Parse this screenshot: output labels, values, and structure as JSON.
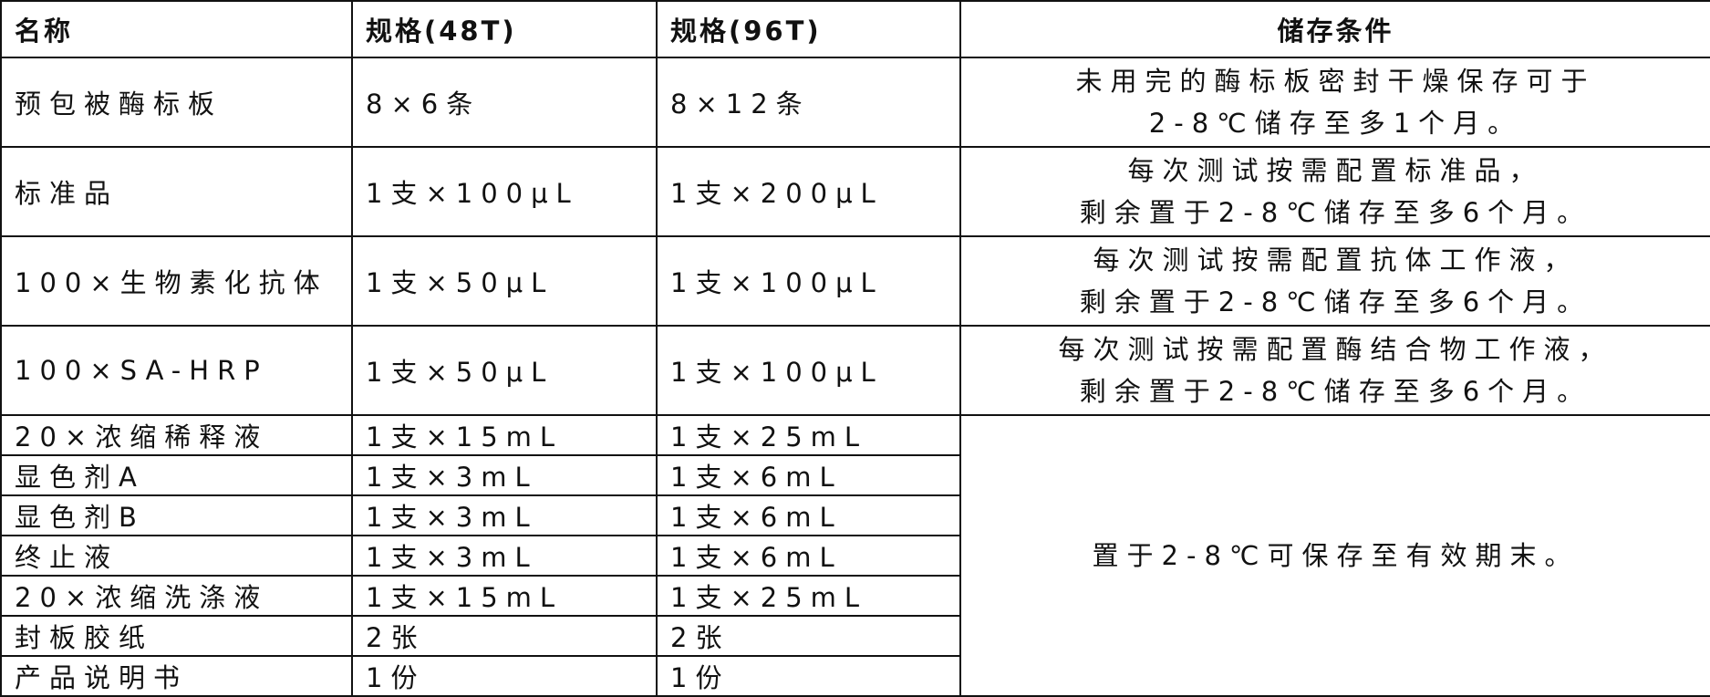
{
  "headers": [
    "名称",
    "规格(48T)",
    "规格(96T)",
    "储存条件"
  ],
  "rows": [
    {
      "name": "预包被酶标板",
      "spec48": "8×6条",
      "spec96": "8×12条",
      "storage": [
        "未用完的酶标板密封干燥保存可于",
        "2-8℃储存至多1个月。"
      ]
    },
    {
      "name": "标准品",
      "spec48": "1支×100μL",
      "spec96": "1支×200μL",
      "storage": [
        "每次测试按需配置标准品，",
        "剩余置于2-8℃储存至多6个月。"
      ]
    },
    {
      "name": "100×生物素化抗体",
      "spec48": "1支×50μL",
      "spec96": "1支×100μL",
      "storage": [
        "每次测试按需配置抗体工作液，",
        "剩余置于2-8℃储存至多6个月。"
      ]
    },
    {
      "name": "100×SA-HRP",
      "spec48": "1支×50μL",
      "spec96": "1支×100μL",
      "storage": [
        "每次测试按需配置酶结合物工作液，",
        "剩余置于2-8℃储存至多6个月。"
      ]
    },
    {
      "name": "20×浓缩稀释液",
      "spec48": "1支×15mL",
      "spec96": "1支×25mL"
    },
    {
      "name": "显色剂A",
      "spec48": "1支×3mL",
      "spec96": "1支×6mL"
    },
    {
      "name": "显色剂B",
      "spec48": "1支×3mL",
      "spec96": "1支×6mL"
    },
    {
      "name": "终止液",
      "spec48": "1支×3mL",
      "spec96": "1支×6mL"
    },
    {
      "name": "20×浓缩洗涤液",
      "spec48": "1支×15mL",
      "spec96": "1支×25mL"
    },
    {
      "name": "封板胶纸",
      "spec48": "2张",
      "spec96": "2张"
    },
    {
      "name": "产品说明书",
      "spec48": "1份",
      "spec96": "1份"
    }
  ],
  "shared_storage": "置于2-8℃可保存至有效期末。"
}
